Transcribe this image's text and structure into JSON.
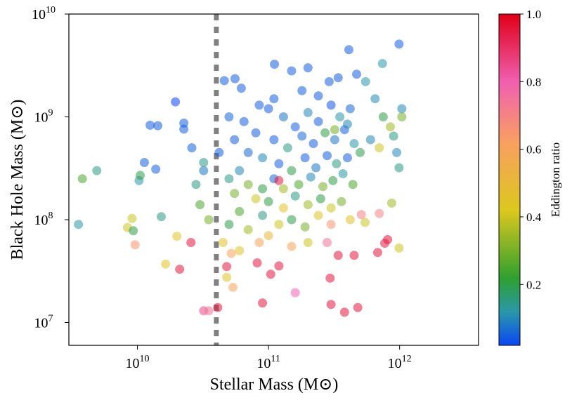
{
  "chart_data": {
    "type": "scatter",
    "xlabel": "Stellar Mass (M⊙)",
    "ylabel": "Black Hole Mass (M⊙)",
    "colorbar_label": "Eddington ratio",
    "log_x": true,
    "log_y": true,
    "xlim": [
      3000000000,
      4000000000000
    ],
    "ylim": [
      6000000,
      10000000000
    ],
    "xticks": [
      {
        "value": 10000000000,
        "label": "10",
        "exponent": "10"
      },
      {
        "value": 100000000000,
        "label": "10",
        "exponent": "11"
      },
      {
        "value": 1000000000000,
        "label": "10",
        "exponent": "12"
      }
    ],
    "yticks": [
      {
        "value": 10000000,
        "label": "10",
        "exponent": "7"
      },
      {
        "value": 100000000,
        "label": "10",
        "exponent": "8"
      },
      {
        "value": 1000000000,
        "label": "10",
        "exponent": "9"
      },
      {
        "value": 10000000000,
        "label": "10",
        "exponent": "10"
      }
    ],
    "threshold_x": 40000000000,
    "threshold_color": "#808080",
    "clim": [
      0.02,
      1.0
    ],
    "cticks": [
      0.2,
      0.4,
      0.6,
      0.8,
      {
        "value": 1,
        "label": "1.0"
      }
    ],
    "colormap": {
      "stops": [
        0.02,
        0.12,
        0.22,
        0.42,
        0.62,
        0.8,
        1.0
      ],
      "colors": [
        "#0a46f5",
        "#2a98a8",
        "#30a030",
        "#dcc81e",
        "#f8a060",
        "#f060b0",
        "#e00018"
      ]
    },
    "x": [
      3550000000.0,
      3800000000.0,
      4900000000.0,
      8400000000.0,
      9100000000.0,
      9300000000.0,
      9600000000.0,
      10300000000.0,
      10500000000.0,
      11300000000.0,
      12500000000.0,
      14300000000.0,
      13800000000.0,
      15200000000.0,
      16400000000.0,
      19500000000.0,
      20000000000.0,
      21000000000.0,
      22600000000.0,
      22600000000.0,
      25600000000.0,
      32000000000.0,
      35000000000.0,
      41000000000.0,
      48000000000.0,
      48000000000.0,
      53500000000.0,
      52000000000.0,
      82000000000.0,
      90000000000.0,
      104000000000.0,
      120000000000.0,
      160000000000.0,
      295000000000.0,
      300000000000.0,
      380000000000.0,
      480000000000.0,
      340000000000.0,
      450000000000.0,
      680000000000.0,
      770000000000.0,
      810000000000.0,
      990000000000.0,
      990000000000.0,
      740000000000.0,
      410000000000.0,
      111000000000.0,
      700000000000.0,
      870000000000.0,
      545000000000.0,
      510000000000.0,
      990000000000.0,
      1040000000000.0,
      1040000000000.0,
      46000000000.0,
      55500000000.0,
      62000000000.0,
      100000000000.0,
      130000000000.0,
      160000000000.0,
      200000000000.0,
      240000000000.0,
      300000000000.0,
      350000000000.0,
      420000000000.0,
      110000000000.0,
      140000000000.0,
      180000000000.0,
      220000000000.0,
      270000000000.0,
      320000000000.0,
      380000000000.0,
      450000000000.0,
      80000000000.0,
      70000000000.0,
      90000000000.0,
      120000000000.0,
      150000000000.0,
      190000000000.0,
      230000000000.0,
      280000000000.0,
      330000000000.0,
      400000000000.0,
      500000000000.0,
      600000000000.0,
      60000000000.0,
      50000000000.0,
      70000000000.0,
      90000000000.0,
      110000000000.0,
      130000000000.0,
      170000000000.0,
      210000000000.0,
      260000000000.0,
      310000000000.0,
      370000000000.0,
      440000000000.0,
      55000000000.0,
      80000000000.0,
      100000000000.0,
      130000000000.0,
      160000000000.0,
      200000000000.0,
      250000000000.0,
      300000000000.0,
      360000000000.0,
      60000000000.0,
      90000000000.0,
      120000000000.0,
      150000000000.0,
      190000000000.0,
      240000000000.0,
      50000000000.0,
      70000000000.0,
      100000000000.0,
      200000000000.0,
      280000000000.0,
      45000000000.0,
      60000000000.0,
      30000000000.0,
      35000000000.0,
      28000000000.0,
      32000000000.0,
      42000000000.0,
      55000000000.0,
      65000000000.0,
      50000000000.0,
      26000000000.0,
      32000000000.0,
      240000000000.0,
      180000000000.0,
      290000000000.0,
      340000000000.0,
      470000000000.0,
      150000000000.0,
      200000000000.0,
      550000000000.0,
      650000000000.0,
      750000000000.0,
      850000000000.0,
      900000000000.0,
      700000000000.0,
      950000000000.0,
      300000000000.0,
      420000000000.0,
      150000000000.0,
      85000000000.0,
      120000000000.0,
      320000000000.0,
      400000000000.0,
      110000000000.0,
      85000000000.0
    ],
    "y": [
      90000000.0,
      250000000.0,
      300000000.0,
      84000000.0,
      103000000.0,
      78000000.0,
      57000000.0,
      240000000.0,
      270000000.0,
      360000000.0,
      830000000.0,
      820000000.0,
      310000000.0,
      107000000.0,
      37000000.0,
      1400000000.0,
      69000000.0,
      33000000.0,
      870000000.0,
      760000000.0,
      60000000.0,
      13000000.0,
      13000000.0,
      14000000.0,
      35000000.0,
      27500000.0,
      22000000.0,
      47000000.0,
      38000000.0,
      15500000.0,
      29500000.0,
      35500000.0,
      19500000.0,
      27000000.0,
      15000000.0,
      12600000.0,
      14000000.0,
      45000000.0,
      45000000.0,
      48000000.0,
      59000000.0,
      64000000.0,
      53000000.0,
      5100000000.0,
      3300000000.0,
      4500000000.0,
      3250000000.0,
      115000000.0,
      145000000.0,
      94000000.0,
      112000000.0,
      320000000.0,
      1200000000.0,
      1000000000.0,
      2250000000.0,
      2350000000.0,
      1900000000.0,
      1200000000.0,
      1000000000.0,
      800000000.0,
      1100000000.0,
      900000000.0,
      1300000000.0,
      1000000000.0,
      1200000000.0,
      600000000.0,
      500000000.0,
      650000000.0,
      550000000.0,
      700000000.0,
      600000000.0,
      750000000.0,
      550000000.0,
      700000000.0,
      450000000.0,
      400000000.0,
      350000000.0,
      300000000.0,
      400000000.0,
      320000000.0,
      420000000.0,
      350000000.0,
      400000000.0,
      450000000.0,
      600000000.0,
      300000000.0,
      250000000.0,
      220000000.0,
      200000000.0,
      250000000.0,
      200000000.0,
      220000000.0,
      260000000.0,
      210000000.0,
      240000000.0,
      280000000.0,
      220000000.0,
      180000000.0,
      160000000.0,
      150000000.0,
      130000000.0,
      170000000.0,
      140000000.0,
      160000000.0,
      130000000.0,
      150000000.0,
      120000000.0,
      110000000.0,
      90000000.0,
      100000000.0,
      85000000.0,
      110000000.0,
      90000000.0,
      80000000.0,
      70000000.0,
      60000000.0,
      60000000.0,
      60000000.0,
      50000000.0,
      140000000.0,
      100000000.0,
      220000000.0,
      300000000.0,
      450000000.0,
      600000000.0,
      900000000.0,
      1000000000.0,
      500000000.0,
      360000000.0,
      1600000000.0,
      1800000000.0,
      2200000000.0,
      2400000000.0,
      2600000000.0,
      2800000000.0,
      3000000000.0,
      2200000000.0,
      1500000000.0,
      1000000000.0,
      800000000.0,
      650000000.0,
      500000000.0,
      450000000.0,
      90000000.0,
      100000000.0,
      55000000.0,
      60000000.0,
      240000000.0,
      750000000.0,
      850000000.0,
      1500000000.0,
      1300000000.0
    ],
    "color_values": [
      0.12,
      0.25,
      0.15,
      0.4,
      0.4,
      0.2,
      0.65,
      0.12,
      0.2,
      0.05,
      0.05,
      0.05,
      0.05,
      0.15,
      0.45,
      0.02,
      0.45,
      0.95,
      0.05,
      0.05,
      0.95,
      0.85,
      0.75,
      0.95,
      0.95,
      0.45,
      0.6,
      0.6,
      0.95,
      0.95,
      0.95,
      0.95,
      0.8,
      0.95,
      0.95,
      0.95,
      0.95,
      0.95,
      0.95,
      0.95,
      0.95,
      0.95,
      0.4,
      0.05,
      0.12,
      0.05,
      0.05,
      0.7,
      0.35,
      0.4,
      0.7,
      0.15,
      0.1,
      0.3,
      0.05,
      0.05,
      0.05,
      0.05,
      0.08,
      0.05,
      0.1,
      0.05,
      0.04,
      0.12,
      0.06,
      0.05,
      0.15,
      0.06,
      0.05,
      0.2,
      0.08,
      0.05,
      0.12,
      0.05,
      0.06,
      0.1,
      0.05,
      0.2,
      0.05,
      0.08,
      0.05,
      0.15,
      0.05,
      0.2,
      0.1,
      0.1,
      0.15,
      0.3,
      0.2,
      0.06,
      0.35,
      0.25,
      0.1,
      0.3,
      0.2,
      0.12,
      0.25,
      0.3,
      0.4,
      0.2,
      0.45,
      0.15,
      0.35,
      0.2,
      0.4,
      0.3,
      0.25,
      0.15,
      0.4,
      0.2,
      0.3,
      0.45,
      0.2,
      0.35,
      0.5,
      0.4,
      0.75,
      0.45,
      0.45,
      0.25,
      0.3,
      0.15,
      0.08,
      0.05,
      0.05,
      0.05,
      0.06,
      0.05,
      0.15,
      0.05,
      0.05,
      0.05,
      0.05,
      0.05,
      0.05,
      0.05,
      0.12,
      0.1,
      0.2,
      0.35,
      0.15,
      0.4,
      0.1,
      0.65,
      0.45,
      0.6,
      0.6,
      0.95,
      0.3,
      0.1,
      0.05,
      0.05
    ]
  }
}
